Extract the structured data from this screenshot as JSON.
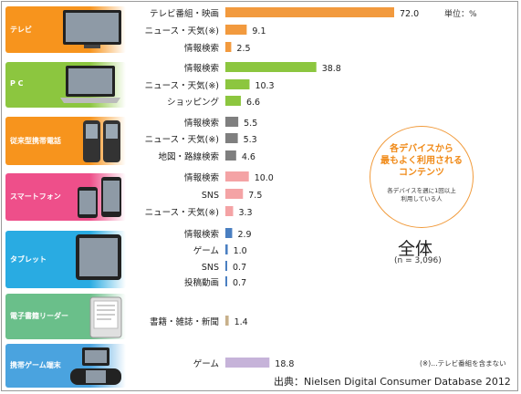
{
  "unit_label": "単位：%",
  "callout": {
    "line1": "各デバイスから",
    "line2": "最もよく利用される",
    "line3": "コンテンツ",
    "sub1": "各デバイスを週に1回以上",
    "sub2": "利用している人"
  },
  "total_label": "全体",
  "sample_label": "(n = 3,096)",
  "footnote": "(※)…テレビ番組を含まない",
  "source": "出典：Nielsen  Digital Consumer Database  2012",
  "colors": {
    "tv": "#f29a3e",
    "pc": "#8cc63f",
    "feature_phone": "#7f7f7f",
    "smartphone": "#f4a3a5",
    "tablet": "#4a7fc1",
    "ereader": "#c8b08a",
    "portable_game": "#c6b3d9"
  },
  "devices": [
    {
      "name": "テレビ",
      "icon": "tv-icon",
      "color": "#f7941d"
    },
    {
      "name": "P C",
      "icon": "laptop-icon",
      "color": "#8cc63f"
    },
    {
      "name": "従来型携帯電話",
      "icon": "flip-phone-icon",
      "color": "#f7941d"
    },
    {
      "name": "スマートフォン",
      "icon": "smartphone-icon",
      "color": "#ee4f8a"
    },
    {
      "name": "タブレット",
      "icon": "tablet-icon",
      "color": "#29abe2"
    },
    {
      "name": "電子書籍リーダー",
      "icon": "ereader-icon",
      "color": "#6abf8a"
    },
    {
      "name": "携帯ゲーム端末",
      "icon": "game-console-icon",
      "color": "#4aa3df"
    }
  ],
  "chart_data": {
    "type": "bar",
    "orientation": "horizontal",
    "unit": "%",
    "xlim": [
      0,
      80
    ],
    "groups": [
      {
        "device": "テレビ",
        "color": "#f29a3e",
        "categories": [
          "テレビ番組・映画",
          "ニュース・天気(※)",
          "情報検索"
        ],
        "values": [
          72.0,
          9.1,
          2.5
        ]
      },
      {
        "device": "P C",
        "color": "#8cc63f",
        "categories": [
          "情報検索",
          "ニュース・天気(※)",
          "ショッピング"
        ],
        "values": [
          38.8,
          10.3,
          6.6
        ]
      },
      {
        "device": "従来型携帯電話",
        "color": "#7f7f7f",
        "categories": [
          "情報検索",
          "ニュース・天気(※)",
          "地図・路線検索"
        ],
        "values": [
          5.5,
          5.3,
          4.6
        ]
      },
      {
        "device": "スマートフォン",
        "color": "#f4a3a5",
        "categories": [
          "情報検索",
          "SNS",
          "ニュース・天気(※)"
        ],
        "values": [
          10.0,
          7.5,
          3.3
        ]
      },
      {
        "device": "タブレット",
        "color": "#4a7fc1",
        "categories": [
          "情報検索",
          "ゲーム",
          "SNS",
          "投稿動画"
        ],
        "values": [
          2.9,
          1.0,
          0.7,
          0.7
        ]
      },
      {
        "device": "電子書籍リーダー",
        "color": "#c8b08a",
        "categories": [
          "書籍・雑誌・新聞"
        ],
        "values": [
          1.4
        ]
      },
      {
        "device": "携帯ゲーム端末",
        "color": "#c6b3d9",
        "categories": [
          "ゲーム"
        ],
        "values": [
          18.8
        ]
      }
    ]
  }
}
